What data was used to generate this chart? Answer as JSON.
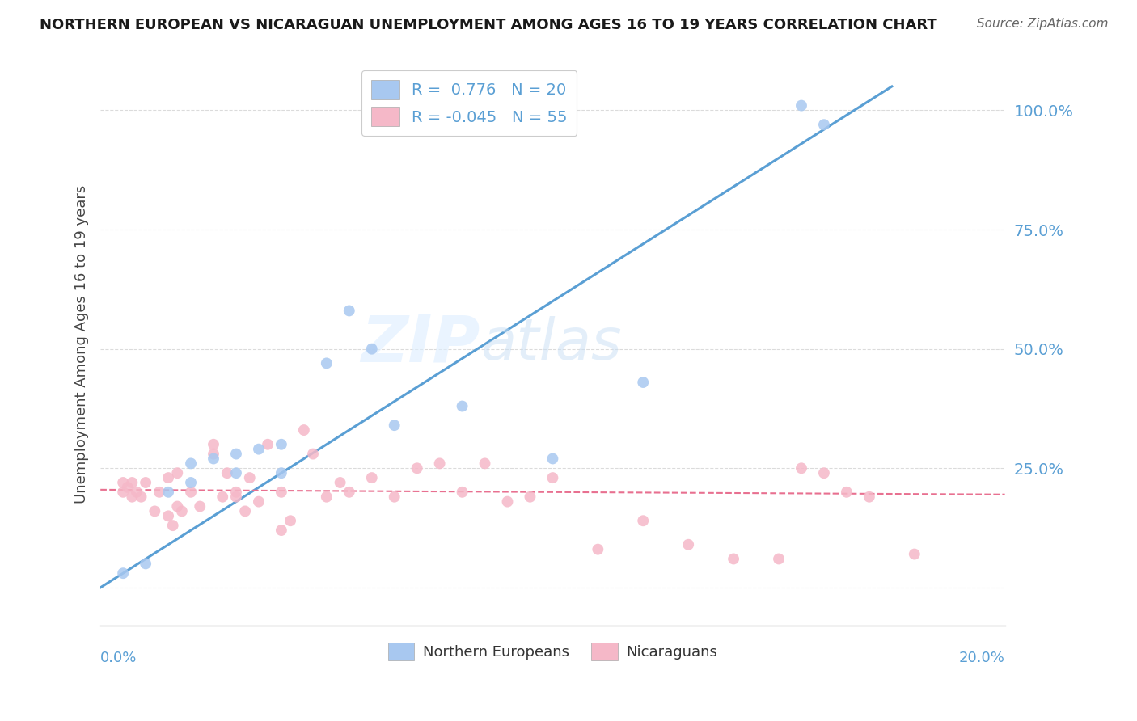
{
  "title": "NORTHERN EUROPEAN VS NICARAGUAN UNEMPLOYMENT AMONG AGES 16 TO 19 YEARS CORRELATION CHART",
  "source": "Source: ZipAtlas.com",
  "ylabel": "Unemployment Among Ages 16 to 19 years",
  "legend_label1": "Northern Europeans",
  "legend_label2": "Nicaraguans",
  "r1": 0.776,
  "n1": 20,
  "r2": -0.045,
  "n2": 55,
  "blue_color": "#A8C8F0",
  "pink_color": "#F5B8C8",
  "blue_line_color": "#5A9FD4",
  "pink_line_color": "#E87090",
  "watermark_zip": "ZIP",
  "watermark_atlas": "atlas",
  "blue_dots_x": [
    0.005,
    0.01,
    0.015,
    0.02,
    0.02,
    0.025,
    0.03,
    0.03,
    0.035,
    0.04,
    0.04,
    0.05,
    0.055,
    0.06,
    0.065,
    0.08,
    0.1,
    0.12,
    0.155,
    0.16
  ],
  "blue_dots_y": [
    0.03,
    0.05,
    0.2,
    0.22,
    0.26,
    0.27,
    0.24,
    0.28,
    0.29,
    0.24,
    0.3,
    0.47,
    0.58,
    0.5,
    0.34,
    0.38,
    0.27,
    0.43,
    1.01,
    0.97
  ],
  "pink_dots_x": [
    0.005,
    0.005,
    0.006,
    0.007,
    0.007,
    0.008,
    0.009,
    0.01,
    0.012,
    0.013,
    0.015,
    0.015,
    0.016,
    0.017,
    0.017,
    0.018,
    0.02,
    0.022,
    0.025,
    0.025,
    0.027,
    0.028,
    0.03,
    0.03,
    0.032,
    0.033,
    0.035,
    0.037,
    0.04,
    0.04,
    0.042,
    0.045,
    0.047,
    0.05,
    0.053,
    0.055,
    0.06,
    0.065,
    0.07,
    0.075,
    0.08,
    0.085,
    0.09,
    0.095,
    0.1,
    0.11,
    0.12,
    0.13,
    0.14,
    0.15,
    0.155,
    0.16,
    0.165,
    0.17,
    0.18
  ],
  "pink_dots_y": [
    0.2,
    0.22,
    0.21,
    0.19,
    0.22,
    0.2,
    0.19,
    0.22,
    0.16,
    0.2,
    0.15,
    0.23,
    0.13,
    0.17,
    0.24,
    0.16,
    0.2,
    0.17,
    0.28,
    0.3,
    0.19,
    0.24,
    0.2,
    0.19,
    0.16,
    0.23,
    0.18,
    0.3,
    0.2,
    0.12,
    0.14,
    0.33,
    0.28,
    0.19,
    0.22,
    0.2,
    0.23,
    0.19,
    0.25,
    0.26,
    0.2,
    0.26,
    0.18,
    0.19,
    0.23,
    0.08,
    0.14,
    0.09,
    0.06,
    0.06,
    0.25,
    0.24,
    0.2,
    0.19,
    0.07
  ],
  "blue_trend_x0": 0.0,
  "blue_trend_y0": 0.0,
  "blue_trend_x1": 0.175,
  "blue_trend_y1": 1.05,
  "pink_trend_x0": 0.0,
  "pink_trend_y0": 0.205,
  "pink_trend_x1": 0.2,
  "pink_trend_y1": 0.195,
  "xlim": [
    0.0,
    0.2
  ],
  "ylim": [
    -0.08,
    1.1
  ],
  "yticks": [
    0.0,
    0.25,
    0.5,
    0.75,
    1.0
  ],
  "ytick_labels": [
    "",
    "25.0%",
    "50.0%",
    "75.0%",
    "100.0%"
  ],
  "background_color": "#FFFFFF",
  "grid_color": "#CCCCCC"
}
